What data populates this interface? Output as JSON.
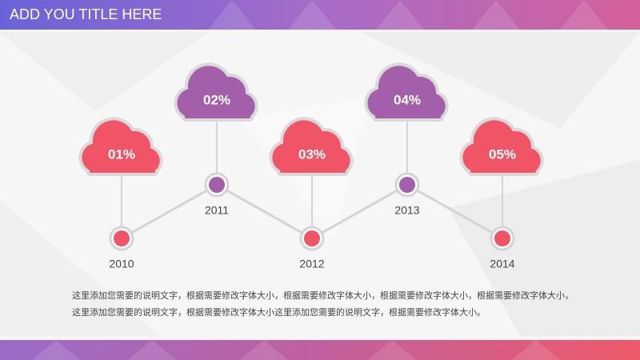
{
  "header": {
    "title": "ADD YOU TITLE HERE"
  },
  "nodes": [
    {
      "label": "01%",
      "year": "2010"
    },
    {
      "label": "02%",
      "year": "2011"
    },
    {
      "label": "03%",
      "year": "2012"
    },
    {
      "label": "04%",
      "year": "2013"
    },
    {
      "label": "05%",
      "year": "2014"
    }
  ],
  "paragraph": [
    "这里添加您需要的说明文字，根据需要修改字体大小，根据需要修改字体大小，根据需要修改字体大小，根据需要修改字体大小，",
    "这里添加您需要的说明文字，根据需要修改字体大小这里添加您需要的说明文字，根据需要修改字体大小。"
  ]
}
